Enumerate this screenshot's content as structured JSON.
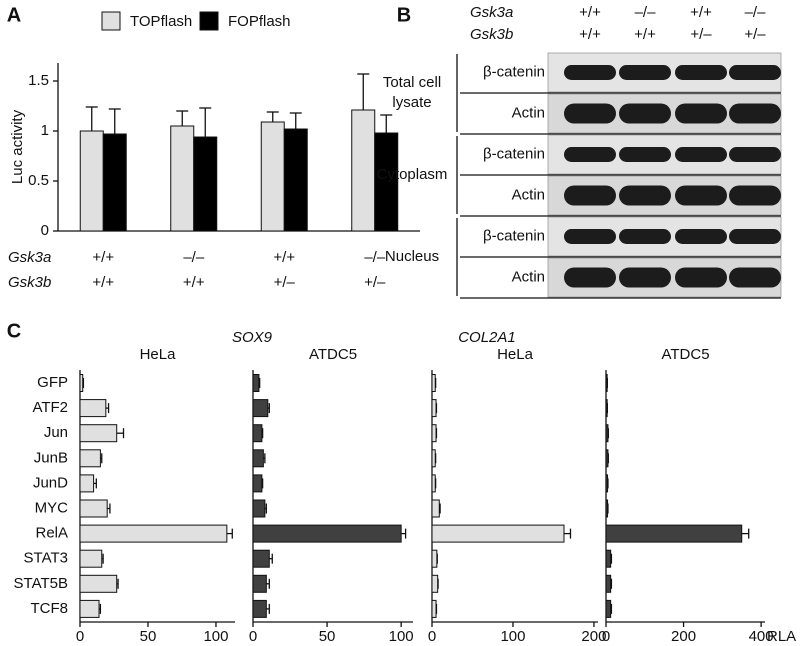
{
  "panel_labels": [
    "A",
    "B",
    "C"
  ],
  "chart_data": [
    {
      "type": "bar",
      "ylabel": "Luc activity",
      "legend": "top",
      "category_levels": [
        "Gsk3a",
        "Gsk3b"
      ],
      "categories": [
        [
          "+/+",
          "+/+"
        ],
        [
          "–/–",
          "+/+"
        ],
        [
          "+/+",
          "+/–"
        ],
        [
          "–/–",
          "+/–"
        ]
      ],
      "series": [
        {
          "name": "TOPflash",
          "color": "#e0e0e0",
          "values": [
            1.0,
            1.05,
            1.09,
            1.21
          ],
          "errors": [
            0.24,
            0.15,
            0.1,
            0.36
          ]
        },
        {
          "name": "FOPflash",
          "color": "#000000",
          "values": [
            0.97,
            0.94,
            1.02,
            0.98
          ],
          "errors": [
            0.25,
            0.29,
            0.16,
            0.18
          ]
        }
      ],
      "ylim": [
        0,
        1.68
      ],
      "yticks": [
        0,
        0.5,
        1,
        1.5
      ]
    },
    {
      "type": "hbar",
      "title": "HeLa",
      "categories": [
        "GFP",
        "ATF2",
        "Jun",
        "JunB",
        "JunD",
        "MYC",
        "RelA",
        "STAT3",
        "STAT5B",
        "TCF8"
      ],
      "series": [
        {
          "color": "#e0e0e0",
          "values": [
            2,
            19,
            27,
            15,
            10,
            20,
            108,
            16,
            27,
            14
          ],
          "errors": [
            0.5,
            2,
            5,
            1,
            2,
            2,
            4,
            1,
            1,
            1
          ]
        }
      ],
      "xlim": [
        0,
        114
      ],
      "xticks": [
        0,
        50,
        100
      ]
    },
    {
      "type": "hbar",
      "title": "ATDC5",
      "categories": [
        null,
        null,
        null,
        null,
        null,
        null,
        null,
        null,
        null,
        null
      ],
      "series": [
        {
          "color": "#404040",
          "values": [
            4,
            10,
            6,
            7,
            6,
            8,
            100,
            11,
            9,
            9
          ],
          "errors": [
            0.5,
            1,
            0.5,
            1,
            0.5,
            1,
            3,
            2,
            2,
            2
          ]
        }
      ],
      "xlim": [
        0,
        108
      ],
      "xticks": [
        0,
        50,
        100
      ]
    },
    {
      "type": "hbar",
      "title": "HeLa",
      "categories": [
        null,
        null,
        null,
        null,
        null,
        null,
        null,
        null,
        null,
        null
      ],
      "series": [
        {
          "color": "#e0e0e0",
          "values": [
            4,
            5,
            5,
            4,
            4,
            9,
            163,
            6,
            7,
            5
          ],
          "errors": [
            0.5,
            0.5,
            0.5,
            0.5,
            0.5,
            1,
            8,
            0.5,
            0.5,
            0.5
          ]
        }
      ],
      "xlim": [
        0,
        205
      ],
      "xticks": [
        0,
        100,
        200
      ]
    },
    {
      "type": "hbar",
      "title": "ATDC5",
      "xlabel": "RLA",
      "categories": [
        null,
        null,
        null,
        null,
        null,
        null,
        null,
        null,
        null,
        null
      ],
      "series": [
        {
          "color": "#404040",
          "values": [
            3,
            3,
            5,
            5,
            4,
            4,
            350,
            12,
            12,
            12
          ],
          "errors": [
            0.5,
            0.5,
            1,
            1,
            1,
            1,
            18,
            2,
            2,
            2
          ]
        }
      ],
      "xlim": [
        0,
        410
      ],
      "xticks": [
        0,
        200,
        400
      ]
    }
  ],
  "panel_c_genes": [
    "SOX9",
    "COL2A1"
  ],
  "blot": {
    "header": [
      {
        "name": "Gsk3a",
        "labels": [
          "+/+",
          "–/–",
          "+/+",
          "–/–"
        ]
      },
      {
        "name": "Gsk3b",
        "labels": [
          "+/+",
          "+/+",
          "+/–",
          "+/–"
        ]
      }
    ],
    "groups": [
      {
        "label": "Total cell lysate",
        "proteins": [
          "β-catenin",
          "Actin"
        ]
      },
      {
        "label": "Cytoplasm",
        "proteins": [
          "β-catenin",
          "Actin"
        ]
      },
      {
        "label": "Nucleus",
        "proteins": [
          "β-catenin",
          "Actin"
        ]
      }
    ]
  }
}
